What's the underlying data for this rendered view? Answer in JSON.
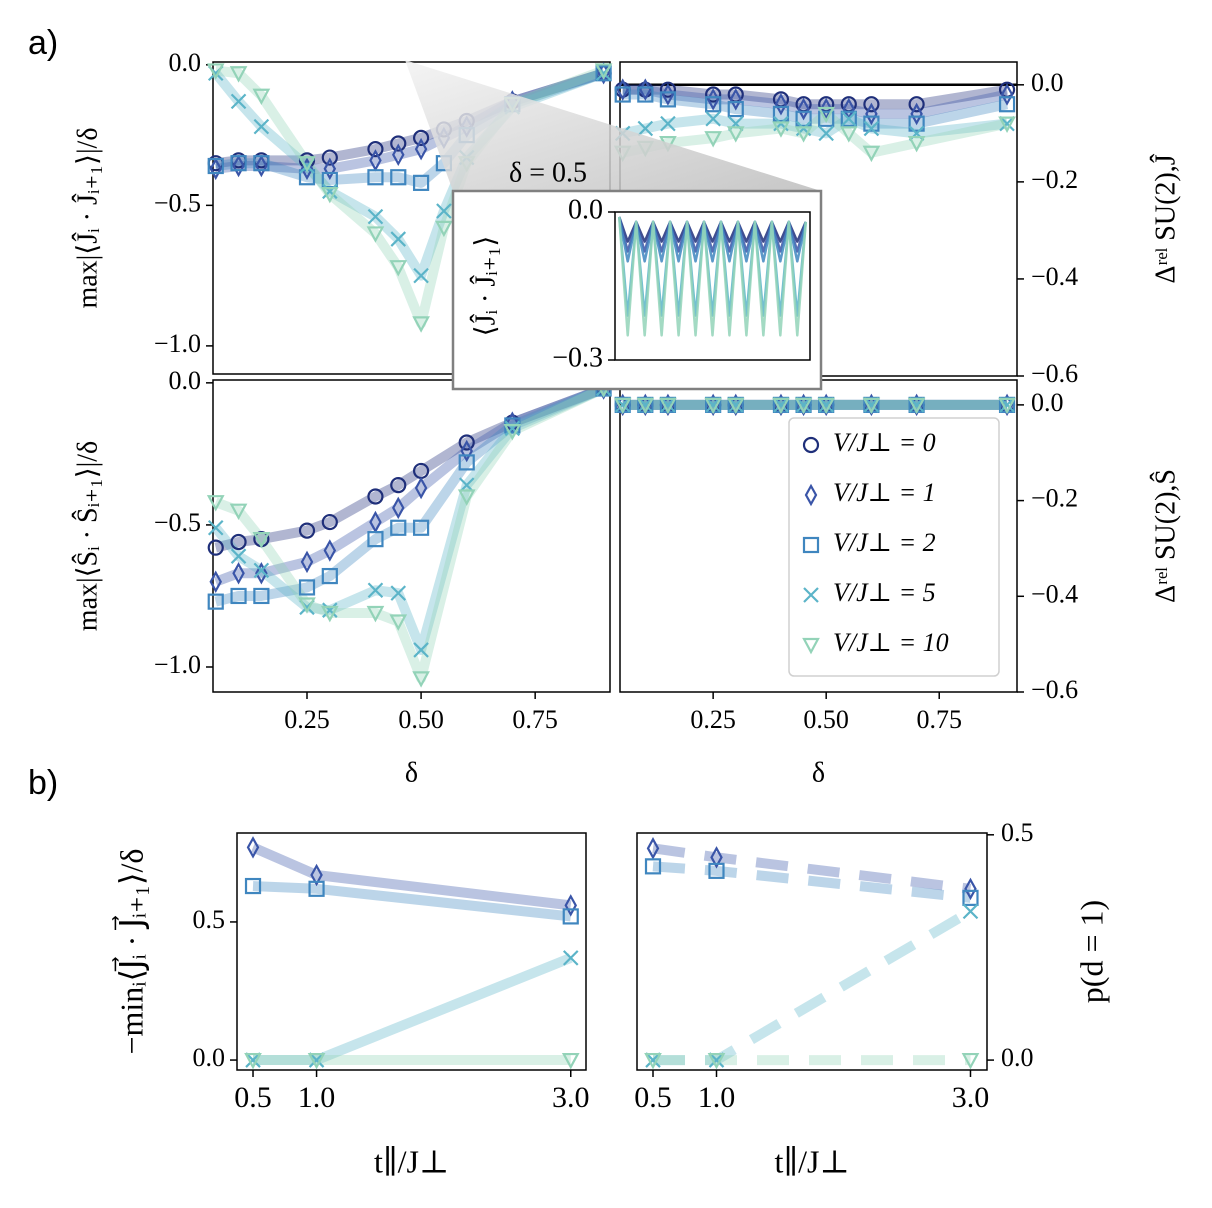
{
  "labels": {
    "a": "a)",
    "b": "b)"
  },
  "chart_data": [
    {
      "type": "line",
      "ylabel": "max|⟨Ĵᵢ · Ĵᵢ₊₁⟩|/δ",
      "x": [
        0.05,
        0.1,
        0.15,
        0.25,
        0.3,
        0.4,
        0.45,
        0.5,
        0.55,
        0.6,
        0.7,
        0.9
      ],
      "xlim": [
        0.044,
        0.914
      ],
      "ylim": [
        -1.1,
        0.01
      ],
      "yticks": [
        {
          "value": 0,
          "label": "0.0"
        },
        {
          "value": -0.5,
          "label": "−0.5"
        },
        {
          "value": -1,
          "label": "−1.0"
        }
      ],
      "series": [
        {
          "color": "#1f2f7a",
          "marker": "o",
          "values": [
            -0.35,
            -0.34,
            -0.34,
            -0.34,
            -0.33,
            -0.3,
            -0.28,
            -0.26,
            -0.23,
            -0.2,
            -0.13,
            -0.03
          ]
        },
        {
          "color": "#3a55a8",
          "marker": "d",
          "values": [
            -0.37,
            -0.36,
            -0.36,
            -0.37,
            -0.37,
            -0.34,
            -0.32,
            -0.3,
            -0.26,
            -0.22,
            -0.13,
            -0.03
          ]
        },
        {
          "color": "#3f86bf",
          "marker": "s",
          "values": [
            -0.36,
            -0.35,
            -0.35,
            -0.4,
            -0.41,
            -0.4,
            -0.4,
            -0.42,
            -0.35,
            -0.25,
            -0.14,
            -0.03
          ]
        },
        {
          "color": "#5bb4c8",
          "marker": "x",
          "values": [
            -0.03,
            -0.13,
            -0.22,
            -0.36,
            -0.45,
            -0.54,
            -0.62,
            -0.75,
            -0.52,
            -0.33,
            -0.15,
            -0.03
          ]
        },
        {
          "color": "#93d3b8",
          "marker": "v",
          "values": [
            -0.02,
            -0.03,
            -0.11,
            -0.35,
            -0.46,
            -0.6,
            -0.72,
            -0.92,
            -0.58,
            -0.35,
            -0.14,
            -0.02
          ]
        }
      ]
    },
    {
      "type": "line",
      "ylabel": "Δʳᵉˡ SU(2),Ĵ",
      "yaxis": "right",
      "hline": 0,
      "x": [
        0.05,
        0.1,
        0.15,
        0.25,
        0.3,
        0.4,
        0.45,
        0.5,
        0.55,
        0.6,
        0.7,
        0.9
      ],
      "xlim": [
        0.044,
        0.922
      ],
      "ylim": [
        -0.6,
        0.047
      ],
      "yticks": [
        {
          "value": 0,
          "label": "0.0"
        },
        {
          "value": -0.2,
          "label": "−0.2"
        },
        {
          "value": -0.4,
          "label": "−0.4"
        },
        {
          "value": -0.6,
          "label": "−0.6"
        }
      ],
      "series": [
        {
          "color": "#1f2f7a",
          "marker": "o",
          "values": [
            -0.01,
            -0.01,
            -0.01,
            -0.02,
            -0.02,
            -0.03,
            -0.04,
            -0.04,
            -0.04,
            -0.04,
            -0.04,
            -0.01
          ]
        },
        {
          "color": "#3a55a8",
          "marker": "d",
          "values": [
            -0.01,
            -0.01,
            -0.02,
            -0.03,
            -0.03,
            -0.04,
            -0.05,
            -0.05,
            -0.05,
            -0.06,
            -0.06,
            -0.02
          ]
        },
        {
          "color": "#3f86bf",
          "marker": "s",
          "values": [
            -0.02,
            -0.02,
            -0.03,
            -0.04,
            -0.05,
            -0.06,
            -0.07,
            -0.07,
            -0.07,
            -0.08,
            -0.08,
            -0.04
          ]
        },
        {
          "color": "#5bb4c8",
          "marker": "x",
          "values": [
            -0.1,
            -0.09,
            -0.08,
            -0.07,
            -0.08,
            -0.08,
            -0.09,
            -0.1,
            -0.07,
            -0.09,
            -0.1,
            -0.08
          ]
        },
        {
          "color": "#93d3b8",
          "marker": "v",
          "values": [
            -0.14,
            -0.13,
            -0.12,
            -0.11,
            -0.1,
            -0.09,
            -0.1,
            -0.06,
            -0.1,
            -0.14,
            -0.12,
            -0.08
          ]
        }
      ]
    },
    {
      "type": "line",
      "ylabel": "max|⟨Ŝᵢ · Ŝᵢ₊₁⟩|/δ",
      "xlabel": "δ",
      "x": [
        0.05,
        0.1,
        0.15,
        0.25,
        0.3,
        0.4,
        0.45,
        0.5,
        0.6,
        0.7,
        0.9
      ],
      "xlim": [
        0.044,
        0.914
      ],
      "ylim": [
        -1.088,
        0.01
      ],
      "xticks": [
        0.25,
        {
          "value": 0.5,
          "label": "0.50"
        },
        0.75
      ],
      "yticks": [
        {
          "value": 0,
          "label": "0.0"
        },
        {
          "value": -0.5,
          "label": "−0.5"
        },
        {
          "value": -1,
          "label": "−1.0"
        }
      ],
      "series": [
        {
          "color": "#1f2f7a",
          "marker": "o",
          "values": [
            -0.58,
            -0.56,
            -0.55,
            -0.52,
            -0.49,
            -0.4,
            -0.36,
            -0.31,
            -0.21,
            -0.14,
            -0.02
          ]
        },
        {
          "color": "#3a55a8",
          "marker": "d",
          "values": [
            -0.7,
            -0.67,
            -0.67,
            -0.63,
            -0.59,
            -0.49,
            -0.44,
            -0.37,
            -0.24,
            -0.14,
            -0.02
          ]
        },
        {
          "color": "#3f86bf",
          "marker": "s",
          "values": [
            -0.77,
            -0.75,
            -0.75,
            -0.72,
            -0.68,
            -0.55,
            -0.51,
            -0.51,
            -0.28,
            -0.15,
            -0.02
          ]
        },
        {
          "color": "#5bb4c8",
          "marker": "x",
          "values": [
            -0.51,
            -0.61,
            -0.66,
            -0.79,
            -0.8,
            -0.73,
            -0.74,
            -0.94,
            -0.36,
            -0.16,
            -0.02
          ]
        },
        {
          "color": "#93d3b8",
          "marker": "v",
          "values": [
            -0.42,
            -0.45,
            -0.55,
            -0.78,
            -0.81,
            -0.81,
            -0.84,
            -1.04,
            -0.4,
            -0.17,
            -0.02
          ]
        }
      ]
    },
    {
      "type": "line",
      "ylabel": "Δʳᵉˡ SU(2),Ŝ",
      "xlabel": "δ",
      "yaxis": "right",
      "legend": "lower right",
      "x": [
        0.05,
        0.1,
        0.15,
        0.25,
        0.3,
        0.4,
        0.45,
        0.5,
        0.6,
        0.7,
        0.9
      ],
      "xlim": [
        0.044,
        0.922
      ],
      "ylim": [
        -0.6,
        0.052
      ],
      "xticks": [
        0.25,
        {
          "value": 0.5,
          "label": "0.50"
        },
        0.75
      ],
      "yticks": [
        {
          "value": 0,
          "label": "0.0"
        },
        {
          "value": -0.2,
          "label": "−0.2"
        },
        {
          "value": -0.4,
          "label": "−0.4"
        },
        {
          "value": -0.6,
          "label": "−0.6"
        }
      ],
      "series": [
        {
          "name": "V/J⊥ = 0",
          "color": "#1f2f7a",
          "marker": "o",
          "values": [
            0,
            0,
            0,
            0,
            0,
            0,
            0,
            0,
            0,
            0,
            0
          ]
        },
        {
          "name": "V/J⊥ = 1",
          "color": "#3a55a8",
          "marker": "d",
          "values": [
            0,
            0,
            0,
            0,
            0,
            0,
            0,
            0,
            0,
            0,
            0
          ]
        },
        {
          "name": "V/J⊥ = 2",
          "color": "#3f86bf",
          "marker": "s",
          "values": [
            0,
            0,
            0,
            0,
            0,
            0,
            0,
            0,
            0,
            0,
            0
          ]
        },
        {
          "name": "V/J⊥ = 5",
          "color": "#5bb4c8",
          "marker": "x",
          "values": [
            0,
            0,
            0,
            0,
            0,
            0,
            0,
            0,
            0,
            0,
            0
          ]
        },
        {
          "name": "V/J⊥ = 10",
          "color": "#93d3b8",
          "marker": "v",
          "values": [
            0,
            0,
            0,
            0,
            0,
            0,
            0,
            0,
            0,
            0,
            0
          ]
        }
      ]
    },
    {
      "type": "line",
      "title": "δ = 0.5",
      "ylabel": "⟨Ĵᵢ · Ĵᵢ₊₁⟩",
      "thin": true,
      "x": [
        0,
        1,
        2,
        3,
        4,
        5,
        6,
        7,
        8,
        9,
        10,
        11,
        12,
        13,
        14,
        15,
        16,
        17,
        18,
        19,
        20,
        21,
        22
      ],
      "xlim": [
        -0.5,
        22.5
      ],
      "ylim": [
        -0.3,
        0
      ],
      "yticks": [
        {
          "value": 0,
          "label": "0.0"
        },
        {
          "value": -0.3,
          "label": "−0.3"
        }
      ],
      "series": [
        {
          "color": "#1f2f7a",
          "values": [
            -0.01,
            -0.06,
            -0.02,
            -0.06,
            -0.02,
            -0.06,
            -0.02,
            -0.06,
            -0.02,
            -0.06,
            -0.02,
            -0.06,
            -0.02,
            -0.06,
            -0.02,
            -0.06,
            -0.02,
            -0.06,
            -0.02,
            -0.06,
            -0.02,
            -0.06,
            -0.02
          ]
        },
        {
          "color": "#3a55a8",
          "values": [
            -0.01,
            -0.08,
            -0.02,
            -0.08,
            -0.02,
            -0.08,
            -0.02,
            -0.08,
            -0.02,
            -0.08,
            -0.02,
            -0.08,
            -0.02,
            -0.08,
            -0.02,
            -0.08,
            -0.02,
            -0.08,
            -0.02,
            -0.08,
            -0.02,
            -0.08,
            -0.02
          ]
        },
        {
          "color": "#3f86bf",
          "values": [
            -0.01,
            -0.1,
            -0.02,
            -0.1,
            -0.02,
            -0.1,
            -0.02,
            -0.1,
            -0.02,
            -0.1,
            -0.02,
            -0.1,
            -0.02,
            -0.1,
            -0.02,
            -0.1,
            -0.02,
            -0.1,
            -0.02,
            -0.1,
            -0.02,
            -0.1,
            -0.02
          ]
        },
        {
          "color": "#5bb4c8",
          "values": [
            -0.01,
            -0.21,
            -0.02,
            -0.21,
            -0.02,
            -0.21,
            -0.02,
            -0.21,
            -0.02,
            -0.21,
            -0.02,
            -0.21,
            -0.02,
            -0.21,
            -0.02,
            -0.21,
            -0.02,
            -0.21,
            -0.02,
            -0.21,
            -0.02,
            -0.21,
            -0.02
          ]
        },
        {
          "color": "#93d3b8",
          "values": [
            -0.01,
            -0.25,
            -0.02,
            -0.25,
            -0.02,
            -0.25,
            -0.02,
            -0.25,
            -0.02,
            -0.25,
            -0.02,
            -0.25,
            -0.02,
            -0.25,
            -0.02,
            -0.25,
            -0.02,
            -0.25,
            -0.02,
            -0.25,
            -0.02,
            -0.25,
            -0.02
          ]
        }
      ]
    },
    {
      "type": "line",
      "ylabel": "−minᵢ⟨J⃗ᵢ · J⃗ᵢ₊₁⟩/δ",
      "xlabel": "t∥/J⊥",
      "x": [
        0.5,
        1.0,
        3.0
      ],
      "xlim": [
        0.374,
        3.12
      ],
      "ylim": [
        -0.036,
        0.822
      ],
      "xticks": [
        0.5,
        {
          "value": 1,
          "label": "1.0"
        },
        {
          "value": 3,
          "label": "3.0"
        }
      ],
      "yticks": [
        {
          "value": 0,
          "label": "0.0"
        },
        0.5
      ],
      "series": [
        {
          "color": "#3a55a8",
          "marker": "d",
          "values": [
            0.77,
            0.67,
            0.56
          ]
        },
        {
          "color": "#3f86bf",
          "marker": "s",
          "values": [
            0.63,
            0.62,
            0.52
          ]
        },
        {
          "color": "#5bb4c8",
          "marker": "x",
          "values": [
            0,
            0,
            0.37
          ]
        },
        {
          "color": "#93d3b8",
          "marker": "v",
          "values": [
            0,
            0,
            0
          ]
        }
      ]
    },
    {
      "type": "line",
      "ylabel": "p(d = 1)",
      "xlabel": "t∥/J⊥",
      "yaxis": "right",
      "linestyle": "dashed",
      "x": [
        0.5,
        1.0,
        3.0
      ],
      "xlim": [
        0.374,
        3.13
      ],
      "ylim": [
        -0.022,
        0.504
      ],
      "xticks": [
        0.5,
        {
          "value": 1,
          "label": "1.0"
        },
        {
          "value": 3,
          "label": "3.0"
        }
      ],
      "yticks": [
        {
          "value": 0,
          "label": "0.0"
        },
        0.5
      ],
      "series": [
        {
          "color": "#3a55a8",
          "marker": "d",
          "values": [
            0.47,
            0.45,
            0.38
          ]
        },
        {
          "color": "#3f86bf",
          "marker": "s",
          "values": [
            0.43,
            0.42,
            0.36
          ]
        },
        {
          "color": "#5bb4c8",
          "marker": "x",
          "values": [
            0,
            0,
            0.33
          ]
        },
        {
          "color": "#93d3b8",
          "marker": "v",
          "values": [
            0,
            0,
            0
          ]
        }
      ]
    }
  ]
}
